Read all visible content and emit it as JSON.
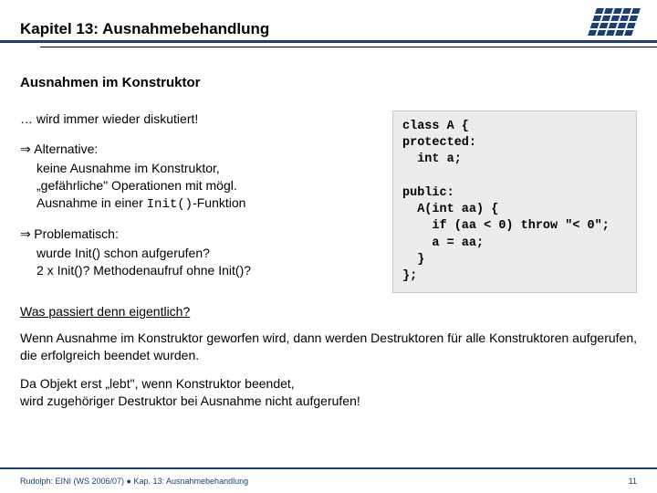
{
  "header": {
    "chapter": "Kapitel 13: Ausnahmebehandlung"
  },
  "section": {
    "title": "Ausnahmen im Konstruktor"
  },
  "left": {
    "intro": "… wird immer wieder diskutiert!",
    "alt_label": "Alternative:",
    "alt_l1": "keine Ausnahme im Konstruktor,",
    "alt_l2": "„gefährliche\" Operationen mit mögl.",
    "alt_l3_a": "Ausnahme in einer ",
    "alt_l3_code": "Init()",
    "alt_l3_b": "-Funktion",
    "prob_label": "Problematisch:",
    "prob_l1": "wurde Init() schon aufgerufen?",
    "prob_l2": "2 x Init()? Methodenaufruf ohne Init()?"
  },
  "code": {
    "l1": "class A {",
    "l2": "protected:",
    "l3": "  int a;",
    "l4": "",
    "l5": "public:",
    "l6": "  A(int aa) {",
    "l7": "    if (aa < 0) throw \"< 0\";",
    "l8": "    a = aa;",
    "l9": "  }",
    "l10": "};"
  },
  "bottom": {
    "q": "Was passiert denn eigentlich?",
    "p1": "Wenn Ausnahme im Konstruktor geworfen wird, dann werden Destruktoren für alle Konstruktoren aufgerufen, die erfolgreich beendet wurden.",
    "p2a": "Da Objekt erst „lebt\", wenn Konstruktor beendet,",
    "p2b": "wird zugehöriger Destruktor bei Ausnahme nicht aufgerufen!"
  },
  "footer": {
    "left": "Rudolph: EINI (WS 2006/07)  ●  Kap. 13: Ausnahmebehandlung",
    "page": "11"
  },
  "colors": {
    "accent": "#1a3e7a",
    "code_bg": "#ececec"
  }
}
